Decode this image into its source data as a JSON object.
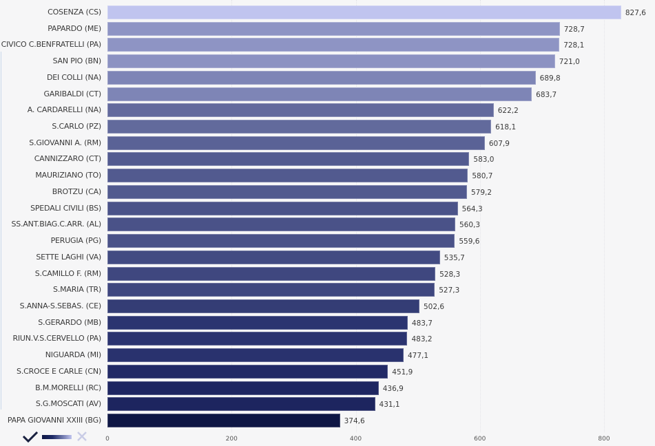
{
  "chart_data": {
    "type": "bar",
    "orientation": "horizontal",
    "title": "",
    "xlabel": "",
    "ylabel": "",
    "xlim": [
      0,
      840
    ],
    "x_ticks": [
      "0",
      "200",
      "400",
      "600",
      "800"
    ],
    "grid": true,
    "legend_position": "bottom-left",
    "categories": [
      "COSENZA (CS)",
      "PAPARDO (ME)",
      "CIVICO C.BENFRATELLI (PA)",
      "SAN PIO (BN)",
      "DEI COLLI (NA)",
      "GARIBALDI (CT)",
      "A. CARDARELLI (NA)",
      "S.CARLO (PZ)",
      "S.GIOVANNI A. (RM)",
      "CANNIZZARO (CT)",
      "MAURIZIANO (TO)",
      "BROTZU (CA)",
      "SPEDALI CIVILI (BS)",
      "SS.ANT.BIAG.C.ARR. (AL)",
      "PERUGIA (PG)",
      "SETTE LAGHI (VA)",
      "S.CAMILLO F. (RM)",
      "S.MARIA (TR)",
      "S.ANNA-S.SEBAS. (CE)",
      "S.GERARDO (MB)",
      "RIUN.V.S.CERVELLO (PA)",
      "NIGUARDA (MI)",
      "S.CROCE E CARLE (CN)",
      "B.M.MORELLI (RC)",
      "S.G.MOSCATI (AV)",
      "PAPA GIOVANNI XXIII (BG)"
    ],
    "values": [
      827.6,
      728.7,
      728.1,
      721.0,
      689.8,
      683.7,
      622.2,
      618.1,
      607.9,
      583.0,
      580.7,
      579.2,
      564.3,
      560.3,
      559.6,
      535.7,
      528.3,
      527.3,
      502.6,
      483.7,
      483.2,
      477.1,
      451.9,
      436.9,
      431.1,
      374.6
    ],
    "value_labels": [
      "827,6",
      "728,7",
      "728,1",
      "721,0",
      "689,8",
      "683,7",
      "622,2",
      "618,1",
      "607,9",
      "583,0",
      "580,7",
      "579,2",
      "564,3",
      "560,3",
      "559,6",
      "535,7",
      "528,3",
      "527,3",
      "502,6",
      "483,7",
      "483,2",
      "477,1",
      "451,9",
      "436,9",
      "431,1",
      "374,6"
    ],
    "bar_colors": [
      "#c0c4ef",
      "#8e94c4",
      "#8e94c4",
      "#8c92c2",
      "#7e85b6",
      "#7e85b6",
      "#636a9d",
      "#626a9c",
      "#5a6296",
      "#535b90",
      "#525a8f",
      "#525a8f",
      "#4b5389",
      "#4a5288",
      "#4a5288",
      "#424b82",
      "#3f477f",
      "#3f477f",
      "#343d75",
      "#2b3470",
      "#2b3470",
      "#29326e",
      "#222a66",
      "#1e2661",
      "#1d255f",
      "#0f1745"
    ]
  },
  "legend": {
    "check_icon_color": "#1a2140",
    "gradient_from": "#0f1845",
    "gradient_to": "#c0c4ef",
    "x_icon_color": "#c9cce6"
  }
}
